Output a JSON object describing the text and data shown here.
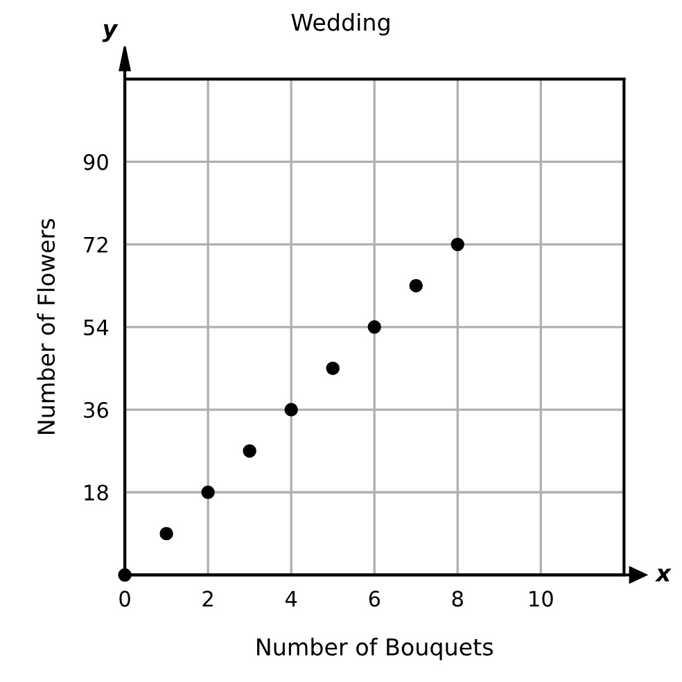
{
  "chart_data": {
    "type": "scatter",
    "title": "Wedding",
    "xlabel": "Number of Bouquets",
    "ylabel": "Number of Flowers",
    "x": [
      0,
      1,
      2,
      3,
      4,
      5,
      6,
      7,
      8
    ],
    "series": [
      {
        "color": "#000000",
        "values": [
          0,
          9,
          18,
          27,
          36,
          45,
          54,
          63,
          72
        ]
      }
    ],
    "xlim": [
      0,
      12
    ],
    "ylim": [
      0,
      108
    ],
    "xticks": [
      0,
      2,
      4,
      6,
      8,
      10,
      {
        "value": 12,
        "label": null
      }
    ],
    "yticks": [
      {
        "value": 0,
        "label": null
      },
      18,
      36,
      54,
      72,
      90,
      {
        "value": 108,
        "label": null
      }
    ],
    "annotations": [
      "x",
      "y"
    ],
    "grid": true,
    "marker": "circle",
    "legend": false
  }
}
